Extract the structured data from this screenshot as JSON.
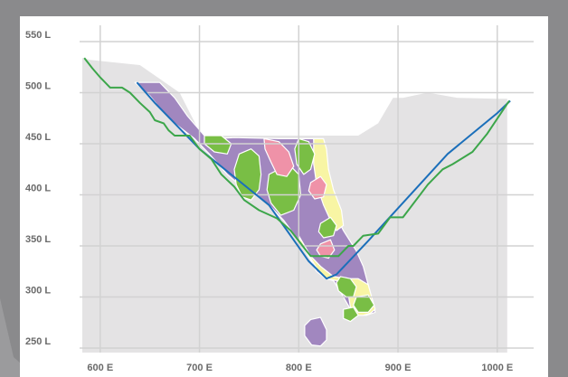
{
  "chart_data": {
    "type": "line",
    "title": "",
    "xlabel": "",
    "ylabel": "",
    "xlim": [
      575,
      1010
    ],
    "ylim": [
      250,
      555
    ],
    "x_ticks": [
      600,
      700,
      800,
      900,
      1000
    ],
    "x_tick_labels": [
      "600 E",
      "700 E",
      "800 E",
      "900 E",
      "1000 E"
    ],
    "y_ticks": [
      550,
      500,
      450,
      400,
      350,
      300,
      250
    ],
    "y_tick_labels": [
      "550 L",
      "500 L",
      "450 L",
      "400 L",
      "350 L",
      "300 L",
      "250 L"
    ],
    "grid": true,
    "colors": {
      "surface": "#e4e3e4",
      "pit_design": "#1b6fba",
      "pit_optimized": "#3ca64a",
      "purple_zone": "#a187bf",
      "green_zone": "#79be45",
      "yellow_zone": "#f8f5a4",
      "pink_zone": "#ef92a8",
      "gridline": "#d2d2d2"
    },
    "surface_profile": [
      [
        582,
        534
      ],
      [
        590,
        532
      ],
      [
        640,
        527
      ],
      [
        680,
        500
      ],
      [
        702,
        458
      ],
      [
        760,
        458
      ],
      [
        860,
        458
      ],
      [
        880,
        470
      ],
      [
        895,
        495
      ],
      [
        905,
        495
      ],
      [
        915,
        497
      ],
      [
        930,
        500
      ],
      [
        960,
        495
      ],
      [
        1000,
        494
      ],
      [
        1010,
        494
      ]
    ],
    "series": [
      {
        "values": [
          [
            637,
            510
          ],
          [
            655,
            490
          ],
          [
            700,
            445
          ],
          [
            770,
            390
          ],
          [
            810,
            335
          ],
          [
            828,
            318
          ],
          [
            838,
            322
          ],
          [
            870,
            355
          ],
          [
            950,
            440
          ],
          [
            1000,
            480
          ],
          [
            1013,
            492
          ]
        ]
      },
      {
        "values": [
          [
            584,
            534
          ],
          [
            592,
            524
          ],
          [
            600,
            515
          ],
          [
            610,
            505
          ],
          [
            622,
            505
          ],
          [
            630,
            500
          ],
          [
            640,
            490
          ],
          [
            650,
            481
          ],
          [
            655,
            473
          ],
          [
            664,
            470
          ],
          [
            669,
            463
          ],
          [
            675,
            458
          ],
          [
            690,
            458
          ],
          [
            700,
            445
          ],
          [
            712,
            435
          ],
          [
            722,
            420
          ],
          [
            735,
            408
          ],
          [
            745,
            395
          ],
          [
            760,
            385
          ],
          [
            778,
            377
          ],
          [
            792,
            365
          ],
          [
            800,
            355
          ],
          [
            807,
            346
          ],
          [
            812,
            340
          ],
          [
            840,
            340
          ],
          [
            850,
            350
          ],
          [
            855,
            350
          ],
          [
            865,
            360
          ],
          [
            880,
            362
          ],
          [
            892,
            378
          ],
          [
            905,
            378
          ],
          [
            930,
            410
          ],
          [
            945,
            425
          ],
          [
            955,
            430
          ],
          [
            975,
            442
          ],
          [
            990,
            460
          ],
          [
            1012,
            492
          ]
        ]
      }
    ],
    "zones": [
      {
        "color": "#a187bf",
        "points": [
          [
            635,
            510
          ],
          [
            660,
            510
          ],
          [
            675,
            495
          ],
          [
            688,
            477
          ],
          [
            705,
            458
          ],
          [
            715,
            455
          ],
          [
            735,
            456
          ],
          [
            780,
            455
          ],
          [
            815,
            455
          ],
          [
            818,
            430
          ],
          [
            825,
            415
          ],
          [
            832,
            390
          ],
          [
            845,
            365
          ],
          [
            858,
            345
          ],
          [
            865,
            330
          ],
          [
            870,
            312
          ],
          [
            877,
            285
          ],
          [
            868,
            282
          ],
          [
            855,
            283
          ],
          [
            845,
            300
          ],
          [
            835,
            316
          ],
          [
            827,
            318
          ],
          [
            818,
            325
          ],
          [
            810,
            340
          ],
          [
            800,
            355
          ],
          [
            785,
            375
          ],
          [
            770,
            390
          ],
          [
            755,
            402
          ],
          [
            740,
            410
          ],
          [
            728,
            420
          ],
          [
            710,
            440
          ],
          [
            695,
            455
          ],
          [
            675,
            470
          ],
          [
            660,
            485
          ],
          [
            650,
            497
          ]
        ]
      },
      {
        "color": "#a187bf",
        "points": [
          [
            812,
            278
          ],
          [
            822,
            280
          ],
          [
            828,
            268
          ],
          [
            828,
            258
          ],
          [
            822,
            252
          ],
          [
            813,
            253
          ],
          [
            806,
            262
          ],
          [
            806,
            272
          ]
        ]
      },
      {
        "color": "#f8f5a4",
        "points": [
          [
            800,
            360
          ],
          [
            812,
            340
          ],
          [
            822,
            330
          ],
          [
            835,
            320
          ],
          [
            848,
            318
          ],
          [
            860,
            318
          ],
          [
            870,
            312
          ],
          [
            877,
            288
          ],
          [
            872,
            284
          ],
          [
            865,
            282
          ],
          [
            858,
            282
          ],
          [
            852,
            290
          ],
          [
            850,
            302
          ],
          [
            845,
            310
          ],
          [
            838,
            316
          ],
          [
            828,
            318
          ],
          [
            820,
            325
          ],
          [
            812,
            338
          ],
          [
            808,
            345
          ],
          [
            802,
            352
          ]
        ]
      },
      {
        "color": "#f8f5a4",
        "points": [
          [
            815,
            455
          ],
          [
            825,
            455
          ],
          [
            828,
            445
          ],
          [
            830,
            425
          ],
          [
            835,
            405
          ],
          [
            843,
            385
          ],
          [
            845,
            370
          ],
          [
            838,
            365
          ],
          [
            832,
            375
          ],
          [
            825,
            390
          ],
          [
            818,
            410
          ],
          [
            815,
            430
          ]
        ]
      },
      {
        "color": "#79be45",
        "points": [
          [
            740,
            440
          ],
          [
            752,
            445
          ],
          [
            760,
            438
          ],
          [
            762,
            420
          ],
          [
            760,
            405
          ],
          [
            752,
            395
          ],
          [
            743,
            398
          ],
          [
            737,
            410
          ],
          [
            735,
            425
          ]
        ]
      },
      {
        "color": "#79be45",
        "points": [
          [
            705,
            458
          ],
          [
            722,
            458
          ],
          [
            732,
            450
          ],
          [
            728,
            440
          ],
          [
            715,
            442
          ],
          [
            705,
            450
          ]
        ]
      },
      {
        "color": "#79be45",
        "points": [
          [
            770,
            420
          ],
          [
            790,
            430
          ],
          [
            800,
            420
          ],
          [
            802,
            400
          ],
          [
            795,
            385
          ],
          [
            782,
            380
          ],
          [
            772,
            392
          ],
          [
            768,
            405
          ]
        ]
      },
      {
        "color": "#79be45",
        "points": [
          [
            800,
            455
          ],
          [
            810,
            452
          ],
          [
            816,
            440
          ],
          [
            812,
            425
          ],
          [
            805,
            420
          ],
          [
            798,
            430
          ],
          [
            796,
            445
          ]
        ]
      },
      {
        "color": "#79be45",
        "points": [
          [
            842,
            320
          ],
          [
            852,
            318
          ],
          [
            858,
            310
          ],
          [
            855,
            300
          ],
          [
            848,
            300
          ],
          [
            840,
            306
          ],
          [
            838,
            314
          ]
        ]
      },
      {
        "color": "#79be45",
        "points": [
          [
            858,
            300
          ],
          [
            870,
            302
          ],
          [
            876,
            292
          ],
          [
            870,
            285
          ],
          [
            860,
            285
          ],
          [
            855,
            292
          ]
        ]
      },
      {
        "color": "#79be45",
        "points": [
          [
            822,
            372
          ],
          [
            832,
            378
          ],
          [
            838,
            370
          ],
          [
            835,
            360
          ],
          [
            825,
            358
          ],
          [
            820,
            364
          ]
        ]
      },
      {
        "color": "#79be45",
        "points": [
          [
            845,
            288
          ],
          [
            855,
            290
          ],
          [
            860,
            282
          ],
          [
            852,
            276
          ],
          [
            845,
            279
          ]
        ]
      },
      {
        "color": "#ef92a8",
        "points": [
          [
            765,
            455
          ],
          [
            780,
            452
          ],
          [
            790,
            442
          ],
          [
            795,
            428
          ],
          [
            788,
            418
          ],
          [
            778,
            420
          ],
          [
            772,
            432
          ],
          [
            766,
            445
          ]
        ]
      },
      {
        "color": "#ef92a8",
        "points": [
          [
            812,
            412
          ],
          [
            822,
            418
          ],
          [
            828,
            410
          ],
          [
            825,
            398
          ],
          [
            816,
            396
          ],
          [
            810,
            404
          ]
        ]
      },
      {
        "color": "#ef92a8",
        "points": [
          [
            822,
            352
          ],
          [
            832,
            356
          ],
          [
            836,
            346
          ],
          [
            830,
            338
          ],
          [
            822,
            340
          ],
          [
            818,
            346
          ]
        ]
      }
    ]
  }
}
